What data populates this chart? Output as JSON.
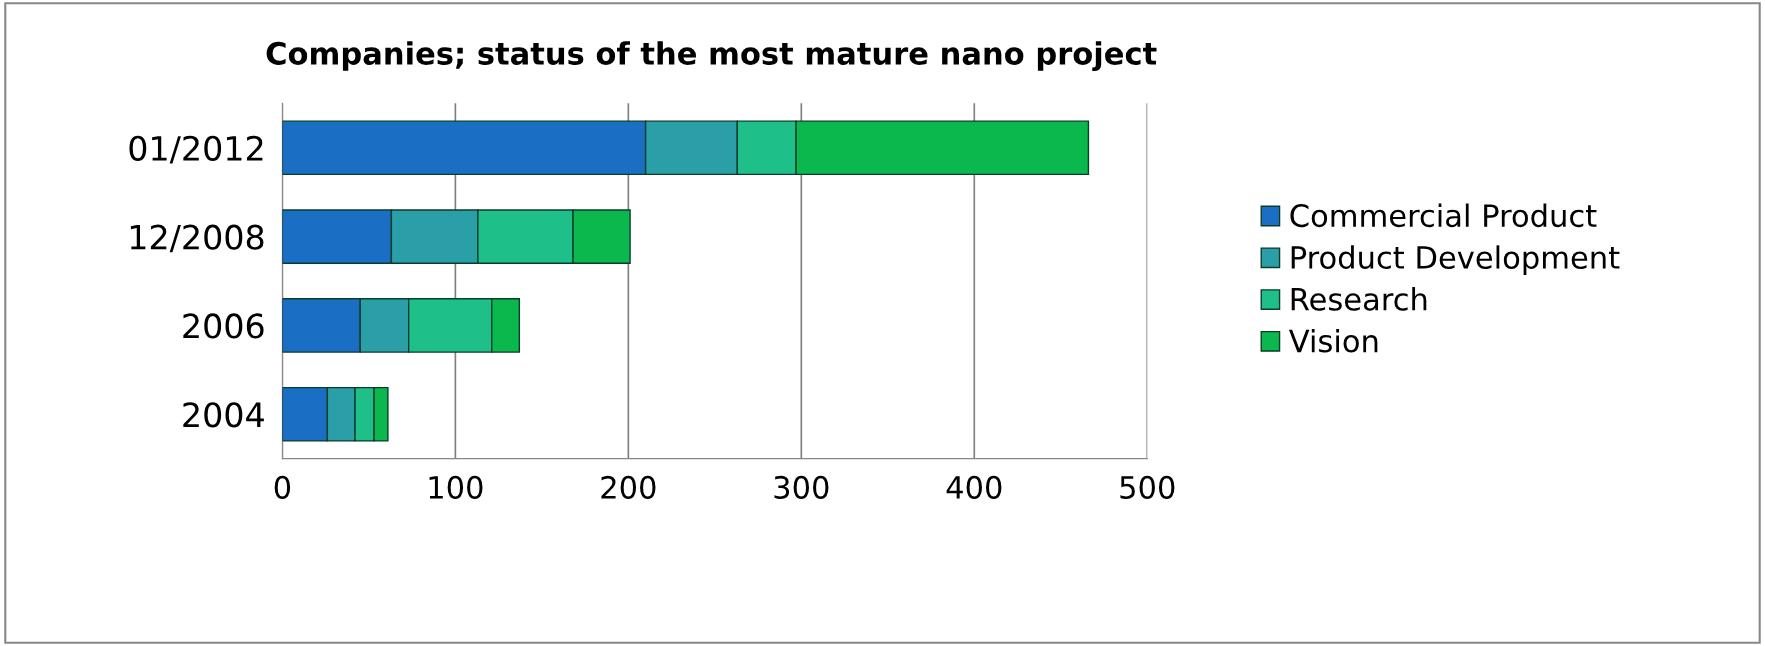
{
  "chart_data": {
    "type": "bar",
    "title": "Companies; status of the most mature nano project",
    "orientation": "horizontal",
    "stacked": true,
    "categories": [
      "01/2012",
      "12/2008",
      "2006",
      "2004"
    ],
    "series": [
      {
        "name": "Commercial Product",
        "color": "#1a6fc4",
        "values": [
          210,
          63,
          45,
          26
        ]
      },
      {
        "name": "Product Development",
        "color": "#2a9fa8",
        "values": [
          53,
          50,
          28,
          16
        ]
      },
      {
        "name": "Research",
        "color": "#1fbf8a",
        "values": [
          34,
          55,
          48,
          11
        ]
      },
      {
        "name": "Vision",
        "color": "#0ab84e",
        "values": [
          169,
          33,
          16,
          8
        ]
      }
    ],
    "xlim": [
      0,
      500
    ],
    "xticks": [
      0,
      100,
      200,
      300,
      400,
      500
    ],
    "grid": "x",
    "legend": "right"
  }
}
